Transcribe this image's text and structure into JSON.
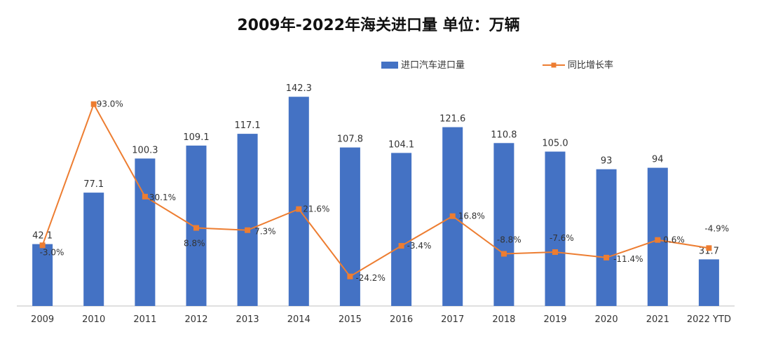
{
  "chart_data": {
    "type": "bar",
    "title": "2009年-2022年海关进口量  单位：万辆",
    "categories": [
      "2009",
      "2010",
      "2011",
      "2012",
      "2013",
      "2014",
      "2015",
      "2016",
      "2017",
      "2018",
      "2019",
      "2020",
      "2021",
      "2022 YTD"
    ],
    "series": [
      {
        "name": "进口汽车进口量",
        "type": "bar",
        "color": "#4472C4",
        "values": [
          42.1,
          77.1,
          100.3,
          109.1,
          117.1,
          142.3,
          107.8,
          104.1,
          121.6,
          110.8,
          105.0,
          93,
          94,
          31.7
        ],
        "labels": [
          "42.1",
          "77.1",
          "100.3",
          "109.1",
          "117.1",
          "142.3",
          "107.8",
          "104.1",
          "121.6",
          "110.8",
          "105.0",
          "93",
          "94",
          "31.7"
        ]
      },
      {
        "name": "同比增长率",
        "type": "line",
        "color": "#ED7D31",
        "values": [
          -3.0,
          93.0,
          30.1,
          8.8,
          7.3,
          21.6,
          -24.2,
          -3.4,
          16.8,
          -8.8,
          -7.6,
          -11.4,
          0.6,
          -4.9
        ],
        "labels": [
          "-3.0%",
          "93.0%",
          "30.1%",
          "8.8%",
          "7.3%",
          "21.6%",
          "-24.2%",
          "-3.4%",
          "16.8%",
          "-8.8%",
          "-7.6%",
          "-11.4%",
          "0.6%",
          "-4.9%"
        ]
      }
    ],
    "bar_axis_range": [
      0,
      160
    ],
    "line_axis_range": [
      -45,
      100
    ],
    "grid": false,
    "legend": "top-right"
  }
}
